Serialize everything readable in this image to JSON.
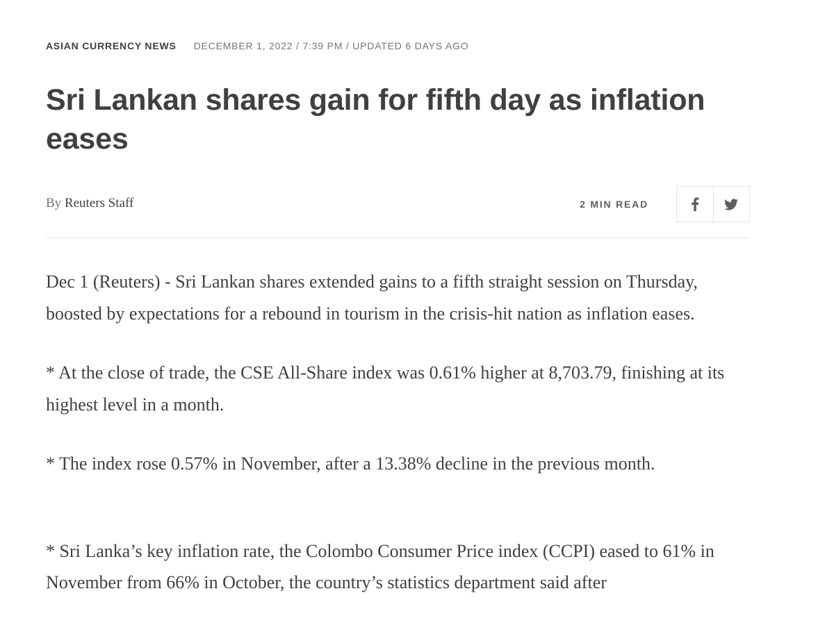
{
  "header": {
    "section": "ASIAN CURRENCY NEWS",
    "dateline": "DECEMBER 1, 2022 / 7:39 PM / UPDATED 6 DAYS AGO"
  },
  "headline": "Sri Lankan shares gain for fifth day as inflation eases",
  "byline": {
    "prefix": "By",
    "author": "Reuters Staff"
  },
  "read_time": "2 MIN READ",
  "share": {
    "facebook_icon": "facebook-icon",
    "twitter_icon": "twitter-icon"
  },
  "colors": {
    "text": "#404040",
    "muted": "#757575",
    "border": "#e3e3e3"
  },
  "body": {
    "paragraphs": [
      "Dec 1 (Reuters) - Sri Lankan shares extended gains to a fifth straight session on Thursday, boosted by expectations for a rebound in tourism in the crisis-hit nation as inflation eases.",
      "* At the close of trade, the CSE All-Share index was 0.61% higher at 8,703.79, finishing at its highest level in a month.",
      "* The index rose 0.57% in November, after a 13.38% decline in the previous month.",
      "* Sri Lanka’s key inflation rate, the Colombo Consumer Price index (CCPI) eased to 61% in November from 66% in October, the country’s statistics department said after"
    ]
  }
}
